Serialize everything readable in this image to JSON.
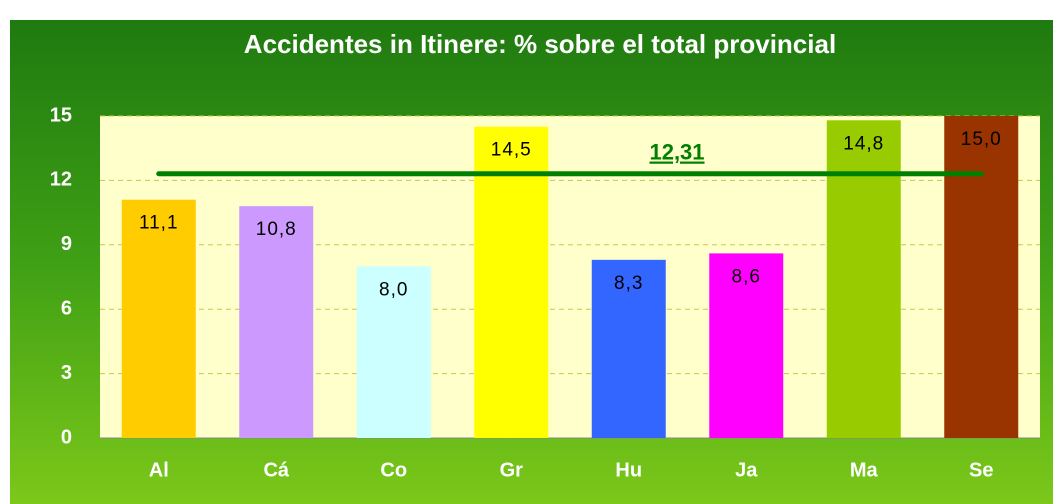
{
  "chart_data": {
    "type": "bar",
    "title": "Accidentes in Itinere: % sobre el total provincial",
    "categories": [
      "Al",
      "Cá",
      "Co",
      "Gr",
      "Hu",
      "Ja",
      "Ma",
      "Se"
    ],
    "values": [
      11.1,
      10.8,
      8.0,
      14.5,
      8.3,
      8.6,
      14.8,
      15.0
    ],
    "value_labels": [
      "11,1",
      "10,8",
      "8,0",
      "14,5",
      "8,3",
      "8,6",
      "14,8",
      "15,0"
    ],
    "colors": [
      "#ffcc00",
      "#cc99ff",
      "#ccffff",
      "#ffff00",
      "#3366ff",
      "#ff00ff",
      "#99cc00",
      "#993300"
    ],
    "ylim": [
      0,
      15
    ],
    "yticks": [
      0,
      3,
      6,
      9,
      12,
      15
    ],
    "grid": true,
    "reference_line": {
      "value": 12.31,
      "label": "12,31",
      "color": "#008000"
    }
  }
}
